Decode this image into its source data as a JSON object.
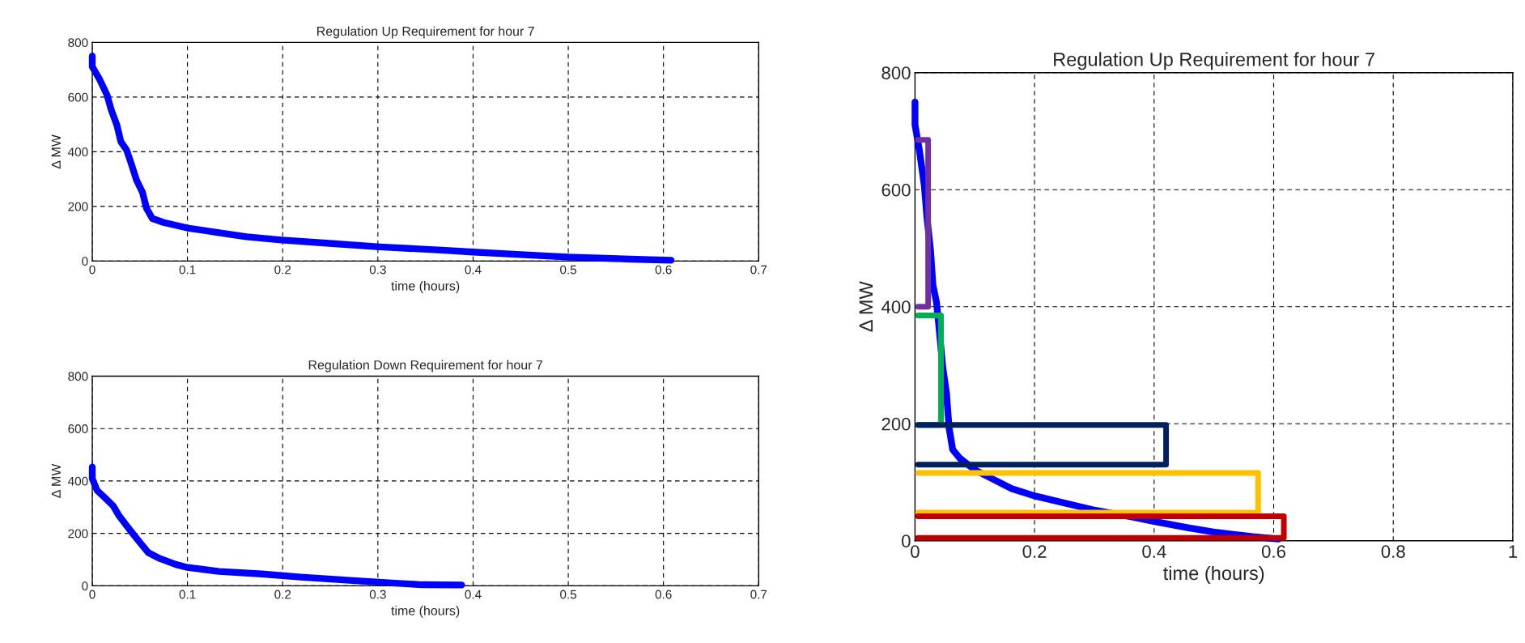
{
  "chart_data": [
    {
      "type": "line",
      "title": "Regulation Up Requirement for hour 7",
      "xlabel": "time (hours)",
      "ylabel": "Δ MW",
      "xlim": [
        0,
        0.7
      ],
      "xticks": [
        0,
        0.1,
        0.2,
        0.3,
        0.4,
        0.5,
        0.6,
        0.7
      ],
      "ylim": [
        0,
        800
      ],
      "yticks": [
        0,
        200,
        400,
        600,
        800
      ],
      "grid": true,
      "line_style": "solid",
      "series": [
        {
          "color": "#0000ff",
          "x": [
            0,
            0,
            0.0074,
            0.0156,
            0.0198,
            0.026,
            0.03,
            0.036,
            0.041,
            0.0465,
            0.0527,
            0.057,
            0.063,
            0.075,
            0.1,
            0.133,
            0.162,
            0.199,
            0.252,
            0.302,
            0.367,
            0.4,
            0.458,
            0.499,
            0.565,
            0.608
          ],
          "values": [
            750,
            711,
            667,
            607,
            555,
            496,
            437,
            407,
            356,
            296,
            252,
            193,
            156,
            141,
            121,
            104,
            89,
            77,
            64,
            52,
            40,
            33,
            22,
            15,
            7,
            3
          ]
        }
      ]
    },
    {
      "type": "line",
      "title": "Regulation Down Requirement for hour 7",
      "xlabel": "time (hours)",
      "ylabel": "Δ MW",
      "xlim": [
        0,
        0.7
      ],
      "xticks": [
        0,
        0.1,
        0.2,
        0.3,
        0.4,
        0.5,
        0.6,
        0.7
      ],
      "ylim": [
        0,
        800
      ],
      "yticks": [
        0,
        200,
        400,
        600,
        800
      ],
      "grid": true,
      "line_style": "solid",
      "series": [
        {
          "color": "#0000ff",
          "x": [
            0,
            0,
            0.005,
            0.0136,
            0.022,
            0.028,
            0.036,
            0.0424,
            0.0506,
            0.059,
            0.071,
            0.088,
            0.1,
            0.133,
            0.178,
            0.219,
            0.277,
            0.318,
            0.347,
            0.388
          ],
          "values": [
            453,
            409,
            364,
            335,
            305,
            268,
            230,
            200,
            163,
            126,
            104,
            81,
            70,
            55,
            45,
            33,
            19,
            10,
            4,
            3
          ]
        }
      ]
    },
    {
      "type": "line",
      "title": "Regulation Up Requirement for hour 7",
      "xlabel": "time (hours)",
      "ylabel": "Δ MW",
      "xlim": [
        0,
        1
      ],
      "xticks": [
        0,
        0.2,
        0.4,
        0.6,
        0.8,
        1
      ],
      "ylim": [
        0,
        800
      ],
      "yticks": [
        0,
        200,
        400,
        600,
        800
      ],
      "grid": true,
      "line_style": "solid",
      "series": [
        {
          "color": "#0000ff",
          "x": [
            0,
            0,
            0.0074,
            0.0156,
            0.0198,
            0.026,
            0.03,
            0.036,
            0.041,
            0.0465,
            0.0527,
            0.057,
            0.063,
            0.075,
            0.1,
            0.133,
            0.162,
            0.199,
            0.252,
            0.302,
            0.367,
            0.4,
            0.458,
            0.499,
            0.565,
            0.608
          ],
          "values": [
            750,
            711,
            667,
            607,
            555,
            496,
            437,
            407,
            356,
            296,
            252,
            193,
            156,
            141,
            121,
            104,
            89,
            77,
            64,
            52,
            40,
            33,
            22,
            15,
            7,
            3
          ]
        },
        {
          "color": "#7030a0",
          "x": [
            0.005,
            0.022,
            0.022,
            0.005
          ],
          "values": [
            400,
            400,
            685,
            685
          ]
        },
        {
          "color": "#00b050",
          "x": [
            0.005,
            0.0435,
            0.0435,
            0.005
          ],
          "values": [
            198,
            198,
            385,
            385
          ]
        },
        {
          "color": "#002060",
          "x": [
            0.005,
            0.42,
            0.42,
            0.005
          ],
          "values": [
            130,
            130,
            198,
            198
          ]
        },
        {
          "color": "#ffc000",
          "x": [
            0.005,
            0.574,
            0.574,
            0.005
          ],
          "values": [
            48,
            48,
            116,
            116
          ]
        },
        {
          "color": "#c00000",
          "x": [
            0.005,
            0.617,
            0.617,
            0.005
          ],
          "values": [
            5,
            5,
            42,
            42
          ]
        }
      ]
    }
  ]
}
